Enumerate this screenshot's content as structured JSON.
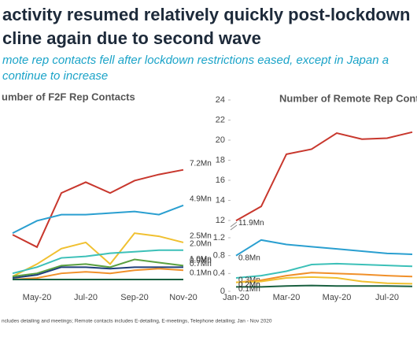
{
  "header": {
    "title": [
      "activity resumed relatively quickly post-lockdown",
      "cline again due to second wave"
    ],
    "subtitle": [
      "mote rep contacts fell after lockdown restrictions eased, except in Japan a",
      "continue to increase"
    ]
  },
  "chart_data": [
    {
      "type": "line",
      "title": "umber of F2F Rep Contacts",
      "categories": [
        null,
        "May-20",
        null,
        "Jul-20",
        null,
        "Sep-20",
        null,
        "Nov-20"
      ],
      "ylim": [
        0,
        8
      ],
      "series": [
        {
          "color": "#c8372d",
          "values": [
            3.0,
            2.2,
            5.7,
            6.4,
            5.7,
            6.5,
            6.9,
            7.2
          ],
          "value_labels": [
            null,
            null,
            null,
            null,
            null,
            null,
            null,
            "7.2Mn"
          ]
        },
        {
          "color": "#2a9fd0",
          "values": [
            3.1,
            3.9,
            4.3,
            4.3,
            4.4,
            4.5,
            4.3,
            4.9
          ],
          "value_labels": [
            null,
            null,
            null,
            null,
            null,
            null,
            null,
            "4.9Mn"
          ]
        },
        {
          "color": "#f0c030",
          "values": [
            0.3,
            1.1,
            2.1,
            2.5,
            1.1,
            3.1,
            2.9,
            2.5
          ],
          "value_labels": [
            null,
            null,
            null,
            null,
            null,
            null,
            null,
            "2.5Mn"
          ]
        },
        {
          "color": "#3cc0b8",
          "values": [
            0.5,
            0.9,
            1.5,
            1.6,
            1.8,
            1.9,
            2.0,
            2.0
          ],
          "value_labels": [
            null,
            null,
            null,
            null,
            null,
            null,
            null,
            "2.0Mn"
          ]
        },
        {
          "color": "#5aa040",
          "values": [
            0.3,
            0.5,
            1.0,
            1.1,
            0.9,
            1.4,
            1.2,
            1.0
          ],
          "value_labels": [
            null,
            null,
            null,
            null,
            null,
            null,
            null,
            "1.0Mn"
          ]
        },
        {
          "color": "#1f3f7a",
          "values": [
            0.2,
            0.4,
            0.9,
            0.9,
            0.8,
            0.9,
            0.9,
            0.9
          ],
          "value_labels": [
            null,
            null,
            null,
            null,
            null,
            null,
            null,
            "0.9Mn"
          ]
        },
        {
          "color": "#f0902a",
          "values": [
            0.1,
            0.2,
            0.5,
            0.6,
            0.5,
            0.7,
            0.8,
            0.7
          ],
          "value_labels": [
            null,
            null,
            null,
            null,
            null,
            null,
            null,
            "0.7Mn"
          ]
        },
        {
          "color": "#1a6040",
          "values": [
            0.1,
            0.1,
            0.1,
            0.1,
            0.1,
            0.1,
            0.1,
            0.1
          ],
          "value_labels": [
            null,
            null,
            null,
            null,
            null,
            null,
            null,
            "0.1Mn"
          ]
        }
      ]
    },
    {
      "type": "line",
      "title": "Number of Remote Rep Conta",
      "categories": [
        "Jan-20",
        null,
        "Mar-20",
        null,
        "May-20",
        null,
        "Jul-20",
        null
      ],
      "ylim": [
        0,
        24
      ],
      "ybreak": [
        1.2,
        12
      ],
      "yticks": [
        0,
        0.4,
        0.8,
        1.2,
        12,
        14,
        16,
        18,
        20,
        22,
        24
      ],
      "series": [
        {
          "color": "#c8372d",
          "values": [
            11.9,
            13.4,
            18.6,
            19.1,
            20.7,
            20.1,
            20.2,
            20.8
          ],
          "value_labels": [
            "11.9Mn",
            null,
            null,
            null,
            null,
            null,
            null,
            null
          ]
        },
        {
          "color": "#2a9fd0",
          "values": [
            0.8,
            1.15,
            1.05,
            1.0,
            0.95,
            0.9,
            0.85,
            0.83
          ],
          "value_labels": [
            "0.8Mn",
            null,
            null,
            null,
            null,
            null,
            null,
            null
          ]
        },
        {
          "color": "#3cc0b8",
          "values": [
            0.3,
            0.35,
            0.45,
            0.6,
            0.62,
            0.6,
            0.58,
            0.56
          ],
          "value_labels": [
            "0.3Mn",
            null,
            null,
            null,
            null,
            null,
            null,
            null
          ]
        },
        {
          "color": "#f0902a",
          "values": [
            0.2,
            0.25,
            0.35,
            0.42,
            0.4,
            0.38,
            0.35,
            0.33
          ],
          "value_labels": [
            "0.2Mn",
            null,
            null,
            null,
            null,
            null,
            null,
            null
          ]
        },
        {
          "color": "#f0c030",
          "values": [
            0.2,
            0.22,
            0.3,
            0.32,
            0.3,
            0.22,
            0.18,
            0.17
          ],
          "value_labels": [
            "0.2Mn",
            null,
            null,
            null,
            null,
            null,
            null,
            null
          ]
        },
        {
          "color": "#1a6040",
          "values": [
            0.1,
            0.1,
            0.12,
            0.13,
            0.12,
            0.12,
            0.12,
            0.11
          ],
          "value_labels": [
            "0.1Mn",
            null,
            null,
            null,
            null,
            null,
            null,
            null
          ]
        }
      ]
    }
  ],
  "footnote": "ncludes detailing and meetings; Remote contacts includes E-detailing, E-meetings, Telephone detailing; Jan - Nov 2020"
}
